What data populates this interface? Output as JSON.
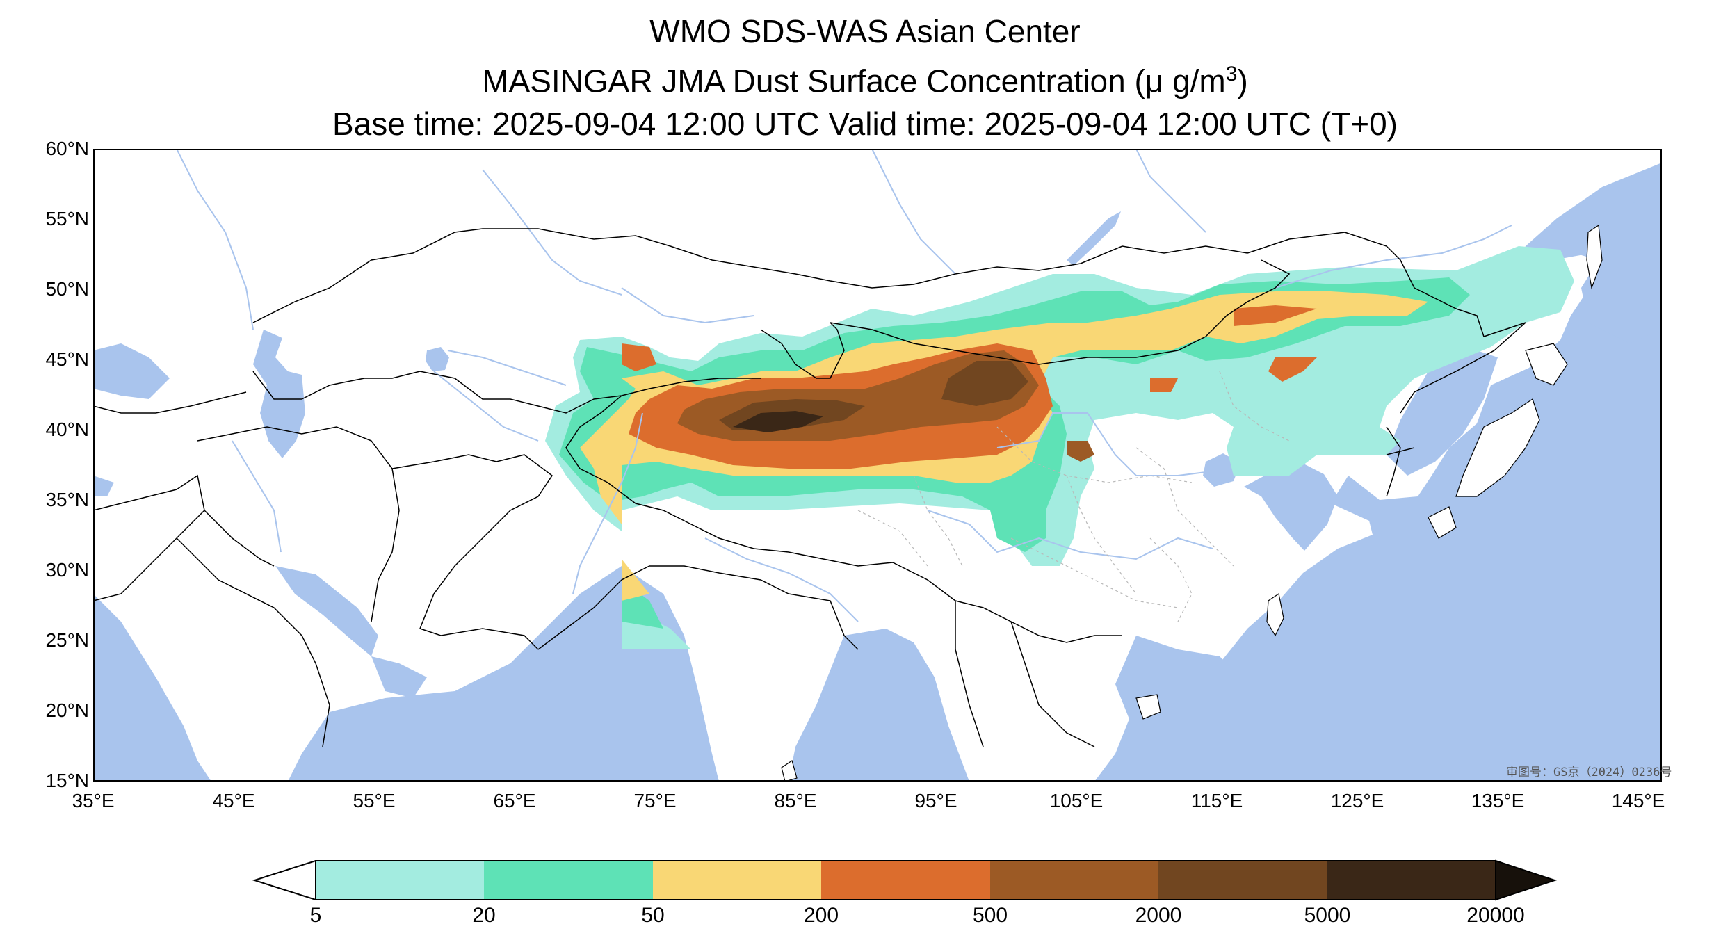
{
  "title": {
    "line1": "WMO SDS-WAS Asian Center",
    "line2_prefix": "MASINGAR JMA Dust Surface Concentration (",
    "line2_unit": "μ g/m",
    "line2_exp": "3",
    "line2_suffix": ")",
    "line3": "Base time: 2025-09-04 12:00 UTC Valid time: 2025-09-04 12:00 UTC (T+0)"
  },
  "map": {
    "lon_range": [
      35,
      150
    ],
    "lat_range": [
      15,
      60
    ],
    "lat_labels": [
      "60°N",
      "55°N",
      "50°N",
      "45°N",
      "40°N",
      "35°N",
      "30°N",
      "25°N",
      "20°N",
      "15°N"
    ],
    "lon_labels": [
      "35°E",
      "45°E",
      "55°E",
      "65°E",
      "75°E",
      "85°E",
      "95°E",
      "105°E",
      "115°E",
      "125°E",
      "135°E",
      "145°E"
    ],
    "stamp": "审图号：GS京（2024）0236号",
    "colors": {
      "ocean": "#a9c4ed",
      "land": "#ffffff",
      "border": "#000000",
      "river": "#a9c4ed",
      "province": "#b8b8b8"
    }
  },
  "colorbar": {
    "levels": [
      "5",
      "20",
      "50",
      "200",
      "500",
      "2000",
      "5000",
      "20000"
    ],
    "colors": [
      "#a3ece0",
      "#5ee2b6",
      "#f9d775",
      "#dc6d2d",
      "#9c5a25",
      "#714620",
      "#3a2717",
      "#17110b"
    ],
    "under_color": "#ffffff"
  }
}
